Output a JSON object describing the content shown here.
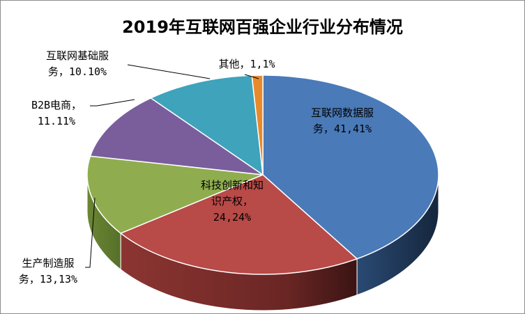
{
  "chart_data": {
    "type": "pie",
    "title": "2019年互联网百强企业行业分布情况",
    "slices": [
      {
        "name": "互联网数据服务",
        "value": 41,
        "percent": "41%",
        "label_lines": [
          "互联网数据服",
          "务，41,41%"
        ],
        "color": "#4a7ab8"
      },
      {
        "name": "科技创新和知识产权",
        "value": 24,
        "percent": "24%",
        "label_lines": [
          "科技创新和知",
          "识产权，",
          "24,24%"
        ],
        "color": "#b84a48"
      },
      {
        "name": "生产制造服务",
        "value": 13,
        "percent": "13%",
        "label_lines": [
          "生产制造服",
          "务，13,13%"
        ],
        "color": "#8fad4f"
      },
      {
        "name": "B2B电商",
        "value": 11,
        "percent": "11%",
        "label_lines": [
          "B2B电商，",
          "11.11%"
        ],
        "color": "#7a5e9c"
      },
      {
        "name": "互联网基础服务",
        "value": 10,
        "percent": "10%",
        "label_lines": [
          "互联网基础服",
          "务，10.10%"
        ],
        "color": "#3ea3bb"
      },
      {
        "name": "其他",
        "value": 1,
        "percent": "1%",
        "label_lines": [
          "其他，1,1%"
        ],
        "color": "#e88a2c"
      }
    ],
    "legend": "none"
  }
}
